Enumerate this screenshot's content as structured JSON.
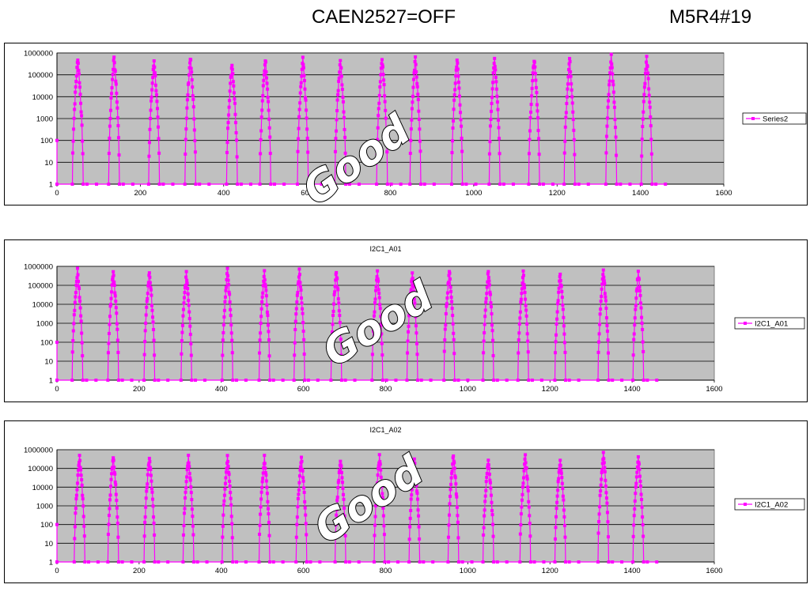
{
  "header": {
    "left": "CAEN2527=OFF",
    "right": "M5R4#19"
  },
  "overlay_text": "Good",
  "colors": {
    "series": "#ff00ff",
    "plot_bg": "#c0c0c0",
    "grid": "#000000"
  },
  "chart_data": [
    {
      "type": "scatter",
      "title": "",
      "x_ticks": [
        "0",
        "200",
        "400",
        "600",
        "800",
        "1000",
        "1200",
        "1400",
        "1600"
      ],
      "y_ticks": [
        "1",
        "10",
        "100",
        "1000",
        "10000",
        "100000",
        "1000000"
      ],
      "xlim": [
        0,
        1600
      ],
      "ylim": [
        1,
        1000000
      ],
      "y_scale": "log",
      "grid": "horizontal",
      "legend": "right",
      "series": [
        {
          "name": "Series2",
          "peaks": [
            [
              50,
              600000
            ],
            [
              137,
              700000
            ],
            [
              233,
              450000
            ],
            [
              320,
              650000
            ],
            [
              420,
              350000
            ],
            [
              500,
              550000
            ],
            [
              590,
              500000
            ],
            [
              680,
              500000
            ],
            [
              780,
              650000
            ],
            [
              860,
              550000
            ],
            [
              960,
              500000
            ],
            [
              1050,
              550000
            ],
            [
              1145,
              550000
            ],
            [
              1230,
              550000
            ],
            [
              1330,
              700000
            ],
            [
              1415,
              600000
            ]
          ]
        }
      ]
    },
    {
      "type": "scatter",
      "title": "I2C1_A01",
      "x_ticks": [
        "0",
        "200",
        "400",
        "600",
        "800",
        "1000",
        "1200",
        "1400",
        "1600"
      ],
      "y_ticks": [
        "1",
        "10",
        "100",
        "1000",
        "10000",
        "100000",
        "1000000"
      ],
      "xlim": [
        0,
        1600
      ],
      "ylim": [
        1,
        1000000
      ],
      "y_scale": "log",
      "grid": "horizontal",
      "legend": "right",
      "series": [
        {
          "name": "I2C1_A01",
          "peaks": [
            [
              50,
              600000
            ],
            [
              137,
              600000
            ],
            [
              225,
              500000
            ],
            [
              315,
              400000
            ],
            [
              415,
              600000
            ],
            [
              505,
              450000
            ],
            [
              590,
              600000
            ],
            [
              680,
              550000
            ],
            [
              780,
              450000
            ],
            [
              865,
              400000
            ],
            [
              955,
              600000
            ],
            [
              1050,
              550000
            ],
            [
              1135,
              450000
            ],
            [
              1225,
              400000
            ],
            [
              1330,
              550000
            ],
            [
              1415,
              500000
            ]
          ]
        }
      ]
    },
    {
      "type": "scatter",
      "title": "I2C1_A02",
      "x_ticks": [
        "0",
        "200",
        "400",
        "600",
        "800",
        "1000",
        "1200",
        "1400",
        "1600"
      ],
      "y_ticks": [
        "1",
        "10",
        "100",
        "1000",
        "10000",
        "100000",
        "1000000"
      ],
      "xlim": [
        0,
        1600
      ],
      "ylim": [
        1,
        1000000
      ],
      "y_scale": "log",
      "grid": "horizontal",
      "legend": "right",
      "series": [
        {
          "name": "I2C1_A02",
          "peaks": [
            [
              55,
              400000
            ],
            [
              137,
              450000
            ],
            [
              225,
              400000
            ],
            [
              320,
              400000
            ],
            [
              415,
              400000
            ],
            [
              505,
              400000
            ],
            [
              595,
              350000
            ],
            [
              690,
              300000
            ],
            [
              785,
              450000
            ],
            [
              870,
              300000
            ],
            [
              965,
              550000
            ],
            [
              1050,
              300000
            ],
            [
              1140,
              450000
            ],
            [
              1225,
              300000
            ],
            [
              1330,
              650000
            ],
            [
              1415,
              400000
            ]
          ]
        }
      ]
    }
  ]
}
